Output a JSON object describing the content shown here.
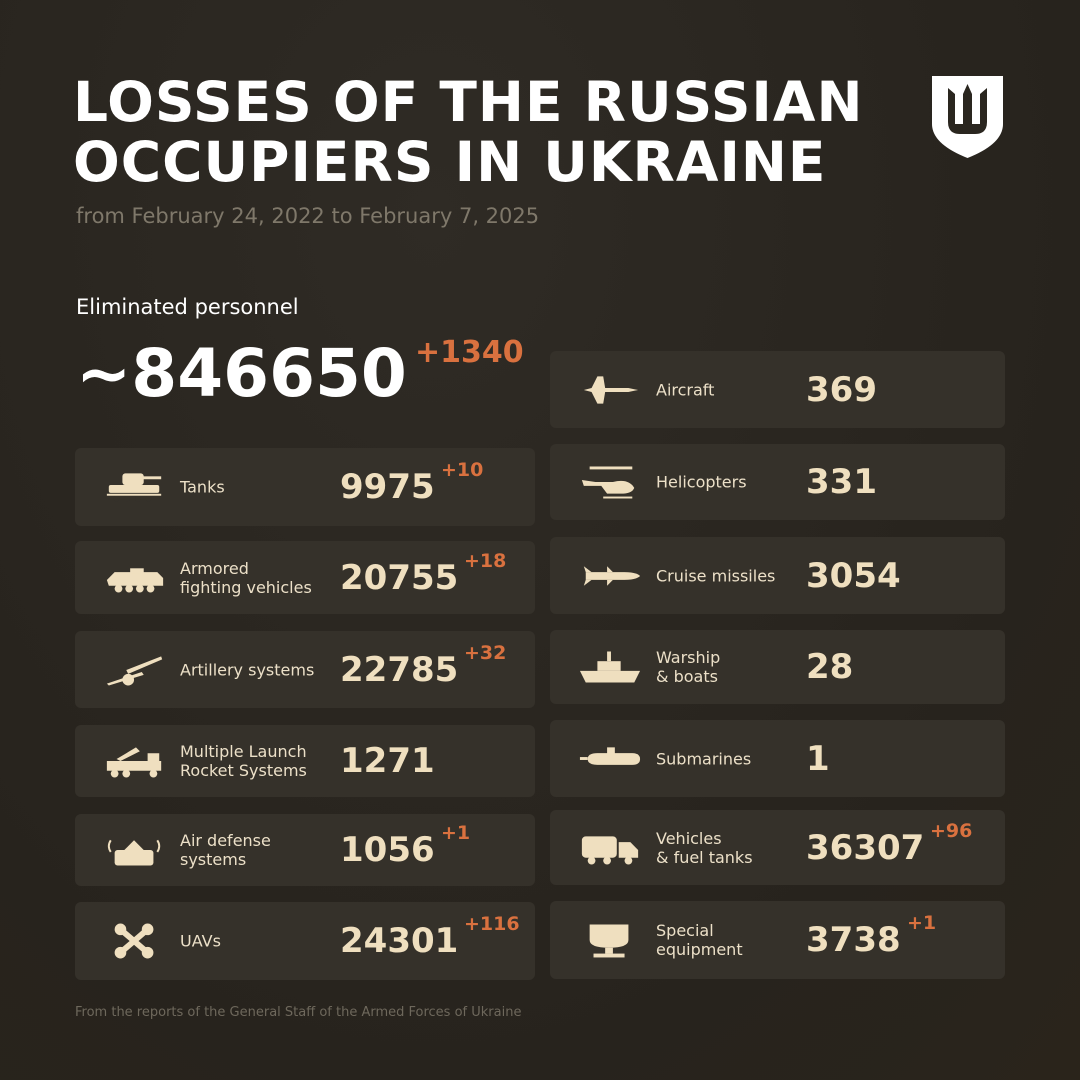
{
  "title": "LOSSES OF THE RUSSIAN OCCUPIERS IN UKRAINE",
  "subtitle": "from February 24, 2022 to February 7, 2025",
  "personnel": {
    "label": "Eliminated personnel",
    "value": "~846650",
    "delta": "+1340"
  },
  "left": [
    {
      "icon": "tank-icon",
      "label": "Tanks",
      "value": "9975",
      "delta": "+10"
    },
    {
      "icon": "armored-vehicle-icon",
      "label": "Armored\nfighting vehicles",
      "value": "20755",
      "delta": "+18"
    },
    {
      "icon": "artillery-icon",
      "label": "Artillery systems",
      "value": "22785",
      "delta": "+32"
    },
    {
      "icon": "mlrs-icon",
      "label": "Multiple Launch\nRocket Systems",
      "value": "1271",
      "delta": ""
    },
    {
      "icon": "air-defense-icon",
      "label": "Air defense\nsystems",
      "value": "1056",
      "delta": "+1"
    },
    {
      "icon": "drone-icon",
      "label": "UAVs",
      "value": "24301",
      "delta": "+116"
    }
  ],
  "right": [
    {
      "icon": "aircraft-icon",
      "label": "Aircraft",
      "value": "369",
      "delta": ""
    },
    {
      "icon": "helicopter-icon",
      "label": "Helicopters",
      "value": "331",
      "delta": ""
    },
    {
      "icon": "cruise-missile-icon",
      "label": "Cruise missiles",
      "value": "3054",
      "delta": ""
    },
    {
      "icon": "warship-icon",
      "label": "Warship\n& boats",
      "value": "28",
      "delta": ""
    },
    {
      "icon": "submarine-icon",
      "label": "Submarines",
      "value": "1",
      "delta": ""
    },
    {
      "icon": "truck-icon",
      "label": "Vehicles\n& fuel tanks",
      "value": "36307",
      "delta": "+96"
    },
    {
      "icon": "special-equipment-icon",
      "label": "Special\nequipment",
      "value": "3738",
      "delta": "+1"
    }
  ],
  "footer": "From the reports of the General Staff of the Armed Forces of Ukraine",
  "colors": {
    "background": "#2a261f",
    "card": "#35312a",
    "accent": "#d9713f",
    "text": "#efdfbf"
  }
}
